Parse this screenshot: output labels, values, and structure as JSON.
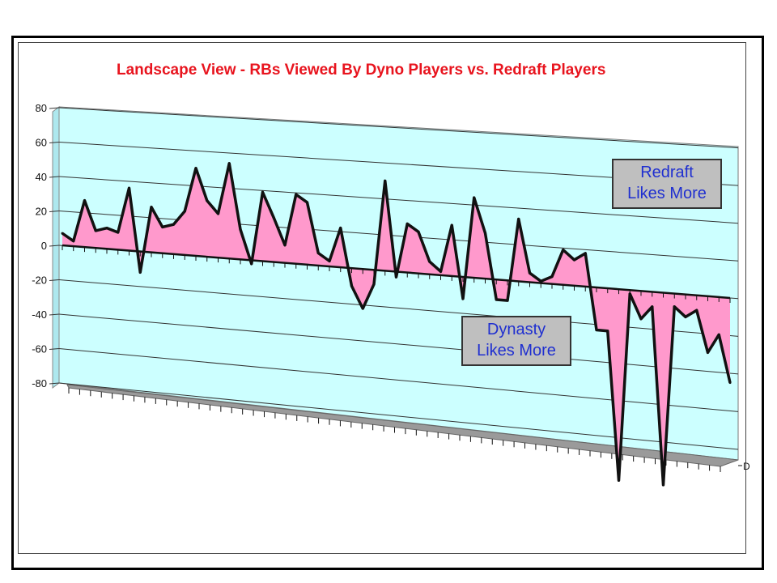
{
  "chart_data": {
    "type": "area",
    "title": "Landscape View - RBs Viewed By Dyno Players vs. Redraft Players",
    "xlabel": "",
    "ylabel": "",
    "ylim": [
      -80,
      80
    ],
    "yticks": [
      "80",
      "60",
      "40",
      "20",
      "0",
      "-20",
      "-40",
      "-60",
      "-80"
    ],
    "yticks_values": [
      80,
      60,
      40,
      20,
      0,
      -20,
      -40,
      -60,
      -80
    ],
    "depth_axis_label": "D",
    "grid": true,
    "series": [
      {
        "values": [
          7,
          3,
          27,
          10,
          12,
          10,
          36,
          -12,
          26,
          15,
          17,
          25,
          50,
          32,
          25,
          54,
          17,
          -2,
          39,
          25,
          10,
          39,
          35,
          7,
          3,
          22,
          -10,
          -22,
          -8,
          50,
          -3,
          27,
          23,
          7,
          2,
          28,
          -12,
          44,
          25,
          -11,
          -11,
          34,
          5,
          1,
          4,
          19,
          14,
          18,
          -23,
          -23,
          -103,
          -2,
          -15,
          -8,
          -103,
          -7,
          -12,
          -8,
          -30,
          -20,
          -45
        ]
      }
    ],
    "annotations": [
      "Redraft\nLikes More",
      "Dynasty\nLikes More"
    ],
    "colors": {
      "fill": "#ff99cc",
      "line": "#111111",
      "wall": "#ccffff",
      "title": "#e8141e",
      "callout_text": "#1f2fd0",
      "callout_bg": "#bfbfbf"
    }
  },
  "labels": {
    "redraft_line1": "Redraft",
    "redraft_line2": "Likes More",
    "dynasty_line1": "Dynasty",
    "dynasty_line2": "Likes More"
  }
}
